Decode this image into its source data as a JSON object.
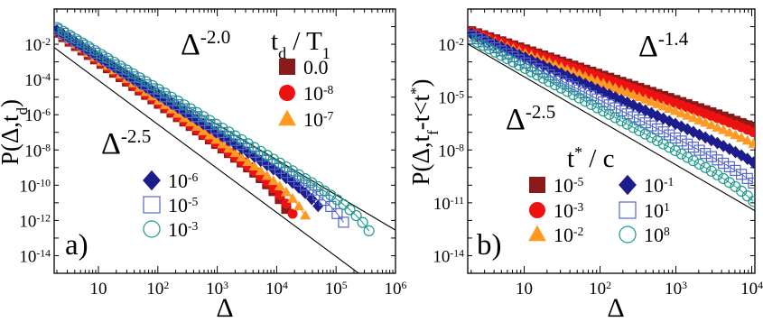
{
  "chart_data": [
    {
      "type": "scatter",
      "panel_label": "a)",
      "xlabel": "Δ",
      "ylabel": "P(Δ,t_d)",
      "xscale": "log",
      "yscale": "log",
      "xlim": [
        1.8,
        1000000
      ],
      "ylim": [
        1e-15,
        1
      ],
      "x_ticks": [
        {
          "value": 10,
          "base": "10",
          "exp": ""
        },
        {
          "value": 100,
          "base": "10",
          "exp": "2"
        },
        {
          "value": 1000,
          "base": "10",
          "exp": "3"
        },
        {
          "value": 10000,
          "base": "10",
          "exp": "4"
        },
        {
          "value": 100000,
          "base": "10",
          "exp": "5"
        },
        {
          "value": 1000000,
          "base": "10",
          "exp": "6"
        }
      ],
      "y_ticks": [
        {
          "value": 0.01,
          "base": "10",
          "exp": "-2"
        },
        {
          "value": 0.0001,
          "base": "10",
          "exp": "-4"
        },
        {
          "value": 1e-06,
          "base": "10",
          "exp": "-6"
        },
        {
          "value": 1e-08,
          "base": "10",
          "exp": "-8"
        },
        {
          "value": 1e-10,
          "base": "10",
          "exp": "-10"
        },
        {
          "value": 1e-12,
          "base": "10",
          "exp": "-12"
        },
        {
          "value": 1e-14,
          "base": "10",
          "exp": "-14"
        }
      ],
      "legend_title": {
        "main": "t",
        "sub": "d",
        "rest": " / T",
        "sub2": "1"
      },
      "reference_lines": [
        {
          "label_base": "Δ",
          "label_exp": "-2.0",
          "slope": -2.0,
          "x0": 2,
          "y0": 0.07
        },
        {
          "label_base": "Δ",
          "label_exp": "-2.5",
          "slope": -2.5,
          "x0": 2,
          "y0": 0.005
        }
      ],
      "series": [
        {
          "name_base": "0.0",
          "name_exp": "",
          "marker": "square",
          "color": "#8b1a1a",
          "y0": 0.045,
          "slope": -2.35,
          "xmax": 17000,
          "cutoff_scale": 9000
        },
        {
          "name_base": "10",
          "name_exp": "-8",
          "marker": "circle",
          "color": "#ee1111",
          "y0": 0.05,
          "slope": -2.35,
          "xmax": 20000,
          "cutoff_scale": 11000
        },
        {
          "name_base": "10",
          "name_exp": "-7",
          "marker": "triangle",
          "color": "#ff9922",
          "y0": 0.055,
          "slope": -2.3,
          "xmax": 35000,
          "cutoff_scale": 20000
        },
        {
          "name_base": "10",
          "name_exp": "-6",
          "marker": "diamond",
          "color": "#1c1c8c",
          "y0": 0.06,
          "slope": -2.15,
          "xmax": 60000,
          "cutoff_scale": 45000
        },
        {
          "name_base": "10",
          "name_exp": "-5",
          "marker": "square-open",
          "color": "#5566cc",
          "y0": 0.07,
          "slope": -2.1,
          "xmax": 140000,
          "cutoff_scale": 90000
        },
        {
          "name_base": "10",
          "name_exp": "-3",
          "marker": "circle-open",
          "color": "#1a9a8a",
          "y0": 0.09,
          "slope": -2.05,
          "xmax": 400000,
          "cutoff_scale": 250000
        }
      ]
    },
    {
      "type": "scatter",
      "panel_label": "b)",
      "xlabel": "Δ",
      "ylabel": "P(Δ,t_f-t<t*)",
      "xscale": "log",
      "yscale": "log",
      "xlim": [
        1.8,
        11000
      ],
      "ylim": [
        1e-15,
        1
      ],
      "x_ticks": [
        {
          "value": 10,
          "base": "10",
          "exp": ""
        },
        {
          "value": 100,
          "base": "10",
          "exp": "2"
        },
        {
          "value": 1000,
          "base": "10",
          "exp": "3"
        },
        {
          "value": 10000,
          "base": "10",
          "exp": "4"
        }
      ],
      "y_ticks": [
        {
          "value": 0.01,
          "base": "10",
          "exp": "-2"
        },
        {
          "value": 1e-05,
          "base": "10",
          "exp": "-5"
        },
        {
          "value": 1e-08,
          "base": "10",
          "exp": "-8"
        },
        {
          "value": 1e-11,
          "base": "10",
          "exp": "-11"
        },
        {
          "value": 1e-14,
          "base": "10",
          "exp": "-14"
        }
      ],
      "legend_title": {
        "main": "t",
        "sup": "*",
        "rest": " / c"
      },
      "reference_lines": [
        {
          "label_base": "Δ",
          "label_exp": "-1.4",
          "slope": -1.4,
          "x0": 2,
          "y0": 0.06
        },
        {
          "label_base": "Δ",
          "label_exp": "-2.5",
          "slope": -2.5,
          "x0": 2,
          "y0": 0.008
        }
      ],
      "series": [
        {
          "name_base": "10",
          "name_exp": "-5",
          "marker": "square",
          "color": "#8b1a1a",
          "y0": 0.055,
          "slope": -1.45,
          "xmax": 11000,
          "cutoff_scale": 30000
        },
        {
          "name_base": "10",
          "name_exp": "-3",
          "marker": "circle",
          "color": "#ee1111",
          "y0": 0.05,
          "slope": -1.5,
          "xmax": 11000,
          "cutoff_scale": 25000
        },
        {
          "name_base": "10",
          "name_exp": "-2",
          "marker": "triangle",
          "color": "#ff9922",
          "y0": 0.045,
          "slope": -1.65,
          "xmax": 11000,
          "cutoff_scale": 20000
        },
        {
          "name_base": "10",
          "name_exp": "-1",
          "marker": "diamond",
          "color": "#1c1c8c",
          "y0": 0.04,
          "slope": -1.9,
          "xmax": 11000,
          "cutoff_scale": 15000
        },
        {
          "name_base": "10",
          "name_exp": "1",
          "marker": "square-open",
          "color": "#5566cc",
          "y0": 0.03,
          "slope": -2.15,
          "xmax": 11000,
          "cutoff_scale": 12000
        },
        {
          "name_base": "10",
          "name_exp": "8",
          "marker": "circle-open",
          "color": "#1a9a8a",
          "y0": 0.02,
          "slope": -2.35,
          "xmax": 11000,
          "cutoff_scale": 10000
        }
      ]
    }
  ]
}
